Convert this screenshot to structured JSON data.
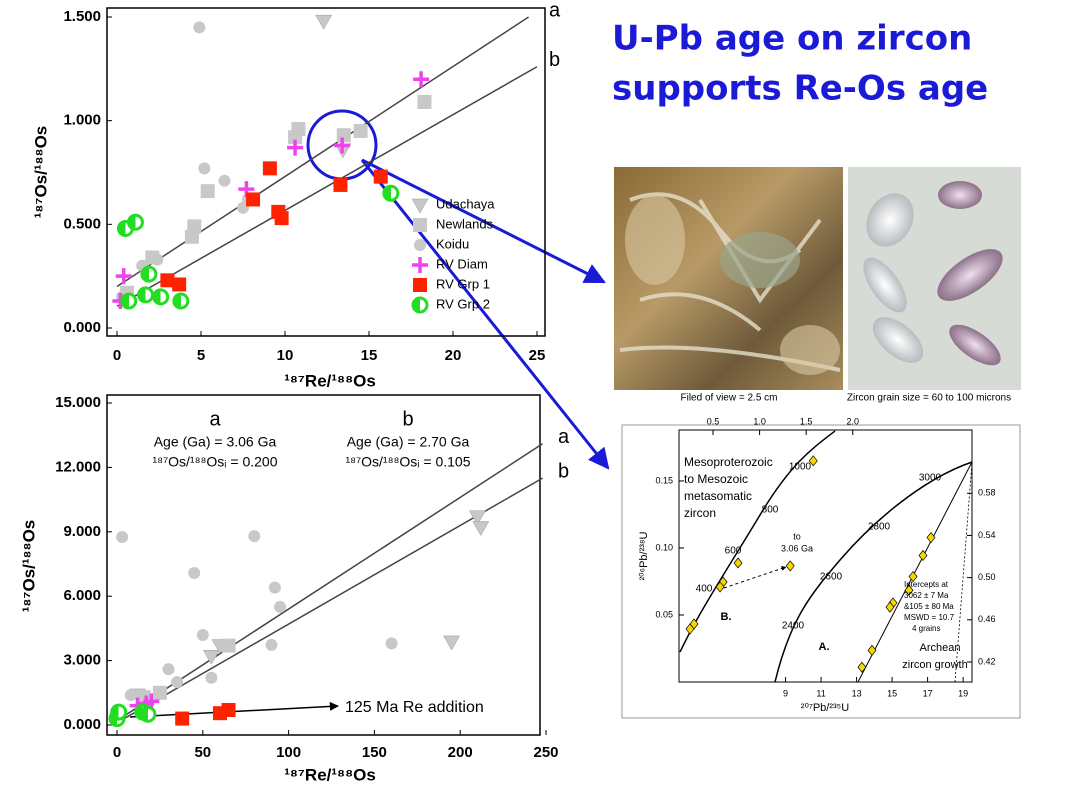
{
  "title_lines": [
    "U-Pb age on zircon",
    "supports Re-Os age"
  ],
  "captions": [
    "Filed of view = 2.5 cm",
    "Zircon grain size = 60 to 100 microns"
  ],
  "chart_data": [
    {
      "type": "scatter",
      "xlabel": "¹⁸⁷Re/¹⁸⁸Os",
      "ylabel": "¹⁸⁷Os/¹⁸⁸Os",
      "xlim": [
        0,
        25
      ],
      "ylim": [
        0,
        1.5
      ],
      "xticks": [
        0,
        5,
        10,
        15,
        20,
        25
      ],
      "yticks": [
        {
          "value": 0,
          "label": "0.000"
        },
        {
          "value": 0.5,
          "label": "0.500"
        },
        {
          "value": 1,
          "label": "1.000"
        },
        {
          "value": 1.5,
          "label": "1.500"
        }
      ],
      "legend": "lower right",
      "lines": [
        {
          "name": "a",
          "color": "#444444",
          "x": [
            0,
            24.5
          ],
          "y": [
            0.2,
            1.5
          ]
        },
        {
          "name": "b",
          "color": "#444444",
          "x": [
            0,
            25
          ],
          "y": [
            0.105,
            1.26
          ]
        }
      ],
      "series": [
        {
          "name": "Udachaya",
          "marker": "triangle",
          "color": "#c8c8c8",
          "x": [
            12.3,
            13.45
          ],
          "y": [
            1.48,
            0.86
          ]
        },
        {
          "name": "Newlands",
          "marker": "square",
          "color": "#c8c8c8",
          "x": [
            4.46,
            4.6,
            5.4,
            10.8,
            10.6,
            13.5,
            14.5,
            18.3,
            2.1,
            0.6
          ],
          "y": [
            0.44,
            0.49,
            0.66,
            0.96,
            0.92,
            0.93,
            0.95,
            1.09,
            0.34,
            0.17
          ]
        },
        {
          "name": "Koidu",
          "marker": "circle",
          "color": "#c8c8c8",
          "x": [
            4.9,
            5.2,
            6.4,
            7.5,
            7.8,
            1.5,
            2.4,
            0.3
          ],
          "y": [
            1.45,
            0.77,
            0.71,
            0.58,
            0.62,
            0.3,
            0.33,
            0.15
          ]
        },
        {
          "name": "RV Diam",
          "marker": "plus",
          "color": "#ee44ee",
          "x": [
            0.4,
            0.2,
            7.7,
            10.6,
            13.4,
            18.1
          ],
          "y": [
            0.25,
            0.13,
            0.67,
            0.87,
            0.88,
            1.2
          ]
        },
        {
          "name": "RV Grp 1",
          "marker": "square",
          "color": "#ff2200",
          "x": [
            3,
            3.7,
            8.1,
            9.1,
            9.6,
            9.8,
            13.3,
            15.7
          ],
          "y": [
            0.23,
            0.21,
            0.62,
            0.77,
            0.56,
            0.53,
            0.69,
            0.73
          ]
        },
        {
          "name": "RV Grp 2",
          "marker": "half",
          "color": "#22dd22",
          "x": [
            0.5,
            1.1,
            1.9,
            1.7,
            2.6,
            3.8,
            0.7,
            16.3
          ],
          "y": [
            0.48,
            0.51,
            0.26,
            0.16,
            0.15,
            0.13,
            0.13,
            0.65
          ]
        }
      ]
    },
    {
      "type": "scatter",
      "xlabel": "¹⁸⁷Re/¹⁸⁸Os",
      "ylabel": "¹⁸⁷Os/¹⁸⁸Os",
      "xlim": [
        0,
        250
      ],
      "ylim": [
        0,
        15
      ],
      "xticks": [
        0,
        50,
        100,
        150,
        200,
        250
      ],
      "yticks": [
        {
          "value": 0,
          "label": "0.000"
        },
        {
          "value": 3,
          "label": "3.000"
        },
        {
          "value": 6,
          "label": "6.000"
        },
        {
          "value": 9,
          "label": "9.000"
        },
        {
          "value": 12,
          "label": "12.000"
        },
        {
          "value": 15,
          "label": "15.000"
        }
      ],
      "lines": [
        {
          "name": "a",
          "color": "#444444",
          "x": [
            0,
            248
          ],
          "y": [
            0.2,
            13.1
          ]
        },
        {
          "name": "b",
          "color": "#444444",
          "x": [
            0,
            248
          ],
          "y": [
            0.105,
            11.5
          ]
        }
      ],
      "annotations": [
        "a",
        "b",
        "Age (Ga) = 3.06 Ga",
        "¹⁸⁷Os/¹⁸⁸Osᵢ = 0.200",
        "Age (Ga) = 2.70 Ga",
        "¹⁸⁷Os/¹⁸⁸Osᵢ = 0.105",
        "125 Ma Re addition"
      ],
      "series": [
        {
          "marker": "triangle",
          "color": "#c8c8c8",
          "x": [
            210,
            212,
            195,
            55,
            60,
            12,
            15
          ],
          "y": [
            9.7,
            9.2,
            3.87,
            3.2,
            3.7,
            1.4,
            1.3
          ]
        },
        {
          "marker": "square",
          "color": "#c8c8c8",
          "x": [
            65,
            15,
            25
          ],
          "y": [
            3.7,
            1.3,
            1.5
          ]
        },
        {
          "marker": "circle",
          "color": "#c8c8c8",
          "x": [
            3,
            45,
            80,
            92,
            95,
            50,
            55,
            90,
            160,
            30,
            8,
            35
          ],
          "y": [
            8.76,
            7.08,
            8.8,
            6.4,
            5.5,
            4.19,
            2.2,
            3.73,
            3.8,
            2.6,
            1.4,
            2.0
          ]
        },
        {
          "marker": "plus",
          "color": "#ee44ee",
          "x": [
            12,
            17,
            20
          ],
          "y": [
            0.9,
            1.0,
            1.1
          ]
        },
        {
          "marker": "square",
          "color": "#ff2200",
          "x": [
            38,
            60,
            65
          ],
          "y": [
            0.3,
            0.55,
            0.7
          ]
        },
        {
          "marker": "half",
          "color": "#22dd22",
          "x": [
            0,
            1,
            15,
            18
          ],
          "y": [
            0.3,
            0.6,
            0.6,
            0.5
          ]
        }
      ]
    },
    {
      "type": "scatter",
      "xlabel": "²⁰⁷Pb/²³⁵U",
      "ylabel": "²⁰⁶Pb/²³⁸U",
      "xlim": [
        3,
        19.5
      ],
      "ylim": [
        0,
        0.188
      ],
      "x2lim": [
        0.135,
        3.28
      ],
      "y2lim": [
        0.401,
        0.64
      ],
      "xticks": [
        9,
        11,
        13,
        15,
        17,
        19
      ],
      "yticks": [
        0.05,
        {
          "value": 0.1,
          "label": "0.10"
        },
        0.15
      ],
      "x2ticks": [
        0.5,
        {
          "value": 1,
          "label": "1.0"
        },
        1.5,
        {
          "value": 2,
          "label": "2.0"
        }
      ],
      "y2ticks": [
        0.42,
        0.46,
        {
          "value": 0.5,
          "label": "0.50"
        },
        0.54,
        0.58
      ],
      "annotations": [
        "Mesoproterozoic",
        "to Mesozoic",
        "metasomatic",
        "zircon",
        "1000",
        "800",
        "600",
        "400",
        "to",
        "3.06 Ga",
        "B.",
        "3000",
        "2800",
        "2600",
        "2400",
        "A.",
        "Intercepts at",
        "3062 ± 7 Ma",
        "&105 ± 80 Ma",
        "MSWD = 10.7",
        "4 grains",
        "Archean",
        "zircon growth"
      ],
      "series": [
        {
          "marker": "diamond",
          "color": "#f5d800",
          "axes": "x-y2",
          "x": [
            17.19,
            16.74,
            16.18,
            15.95,
            15.05,
            14.88,
            13.87,
            13.3
          ],
          "y": [
            0.538,
            0.521,
            0.501,
            0.488,
            0.476,
            0.472,
            0.431,
            0.415
          ]
        },
        {
          "marker": "diamond",
          "color": "#f5d800",
          "axes": "x2-y",
          "x": [
            1.576,
            1.329,
            0.769,
            0.608,
            0.576,
            0.296,
            0.253
          ],
          "y": [
            0.165,
            0.0866,
            0.0888,
            0.0746,
            0.0709,
            0.0433,
            0.0396
          ]
        }
      ]
    }
  ]
}
